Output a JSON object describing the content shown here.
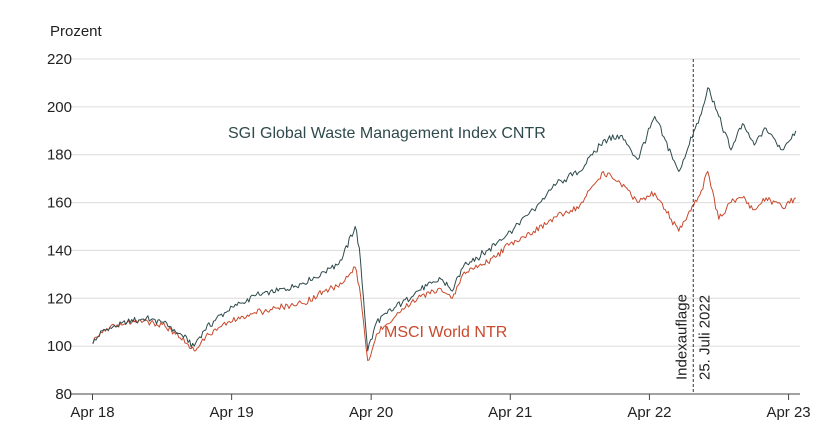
{
  "chart_data": {
    "type": "line",
    "ylabel": "Prozent",
    "ylim": [
      80,
      220
    ],
    "yticks": [
      80,
      100,
      120,
      140,
      160,
      180,
      200,
      220
    ],
    "xlim": [
      "2018-02-01",
      "2023-05-01"
    ],
    "xticks": [
      {
        "date": "2018-04-01",
        "label": "Apr 18"
      },
      {
        "date": "2019-04-01",
        "label": "Apr 19"
      },
      {
        "date": "2020-04-01",
        "label": "Apr 20"
      },
      {
        "date": "2021-04-01",
        "label": "Apr 21"
      },
      {
        "date": "2022-04-01",
        "label": "Apr 22"
      },
      {
        "date": "2023-04-01",
        "label": "Apr 23"
      }
    ],
    "grid": "horizontal",
    "colors": {
      "sgi": "#2f4a4c",
      "msci": "#c9492c"
    },
    "series": [
      {
        "name": "SGI Global Waste Management Index CNTR",
        "points": [
          [
            "2018-04-02",
            101
          ],
          [
            "2018-05-01",
            107
          ],
          [
            "2018-06-01",
            108
          ],
          [
            "2018-07-01",
            110
          ],
          [
            "2018-08-01",
            111
          ],
          [
            "2018-09-01",
            111
          ],
          [
            "2018-10-01",
            110
          ],
          [
            "2018-11-01",
            107
          ],
          [
            "2018-12-24",
            100
          ],
          [
            "2019-01-15",
            106
          ],
          [
            "2019-03-01",
            113
          ],
          [
            "2019-04-15",
            117
          ],
          [
            "2019-06-01",
            121
          ],
          [
            "2019-08-01",
            123
          ],
          [
            "2019-10-01",
            126
          ],
          [
            "2019-12-01",
            131
          ],
          [
            "2020-01-15",
            136
          ],
          [
            "2020-02-19",
            150
          ],
          [
            "2020-03-01",
            141
          ],
          [
            "2020-03-23",
            98
          ],
          [
            "2020-04-15",
            110
          ],
          [
            "2020-06-01",
            116
          ],
          [
            "2020-08-01",
            123
          ],
          [
            "2020-10-01",
            128
          ],
          [
            "2020-10-31",
            123
          ],
          [
            "2020-12-01",
            134
          ],
          [
            "2021-02-01",
            140
          ],
          [
            "2021-04-01",
            148
          ],
          [
            "2021-06-01",
            157
          ],
          [
            "2021-08-01",
            168
          ],
          [
            "2021-10-01",
            173
          ],
          [
            "2021-12-01",
            186
          ],
          [
            "2022-01-15",
            188
          ],
          [
            "2022-03-01",
            178
          ],
          [
            "2022-04-15",
            196
          ],
          [
            "2022-06-17",
            173
          ],
          [
            "2022-08-15",
            197
          ],
          [
            "2022-09-01",
            208
          ],
          [
            "2022-09-30",
            196
          ],
          [
            "2022-11-01",
            182
          ],
          [
            "2022-12-01",
            193
          ],
          [
            "2023-01-01",
            184
          ],
          [
            "2023-02-01",
            191
          ],
          [
            "2023-03-15",
            182
          ],
          [
            "2023-04-20",
            190
          ]
        ]
      },
      {
        "name": "MSCI World NTR",
        "points": [
          [
            "2018-04-02",
            101
          ],
          [
            "2018-05-01",
            107
          ],
          [
            "2018-06-01",
            108
          ],
          [
            "2018-07-01",
            110
          ],
          [
            "2018-08-01",
            111
          ],
          [
            "2018-09-01",
            110
          ],
          [
            "2018-10-01",
            109
          ],
          [
            "2018-11-01",
            106
          ],
          [
            "2018-12-24",
            98
          ],
          [
            "2019-01-15",
            103
          ],
          [
            "2019-03-01",
            108
          ],
          [
            "2019-04-15",
            111
          ],
          [
            "2019-06-01",
            114
          ],
          [
            "2019-08-01",
            116
          ],
          [
            "2019-10-01",
            118
          ],
          [
            "2019-12-01",
            123
          ],
          [
            "2020-01-15",
            126
          ],
          [
            "2020-02-19",
            133
          ],
          [
            "2020-03-01",
            125
          ],
          [
            "2020-03-23",
            94
          ],
          [
            "2020-04-15",
            105
          ],
          [
            "2020-06-01",
            112
          ],
          [
            "2020-08-01",
            120
          ],
          [
            "2020-10-01",
            124
          ],
          [
            "2020-10-31",
            120
          ],
          [
            "2020-12-01",
            131
          ],
          [
            "2021-02-01",
            135
          ],
          [
            "2021-04-01",
            143
          ],
          [
            "2021-06-01",
            148
          ],
          [
            "2021-08-01",
            154
          ],
          [
            "2021-10-01",
            159
          ],
          [
            "2021-12-01",
            173
          ],
          [
            "2022-01-15",
            168
          ],
          [
            "2022-03-01",
            160
          ],
          [
            "2022-04-15",
            164
          ],
          [
            "2022-06-17",
            148
          ],
          [
            "2022-08-15",
            165
          ],
          [
            "2022-09-01",
            173
          ],
          [
            "2022-09-30",
            153
          ],
          [
            "2022-11-01",
            160
          ],
          [
            "2022-12-01",
            162
          ],
          [
            "2023-01-01",
            157
          ],
          [
            "2023-02-01",
            162
          ],
          [
            "2023-03-15",
            158
          ],
          [
            "2023-04-20",
            162
          ]
        ]
      }
    ],
    "annotations": [
      {
        "type": "vline",
        "date": "2022-07-25",
        "labels": [
          "Indexauflage",
          "25. Juli 2022"
        ]
      }
    ]
  }
}
